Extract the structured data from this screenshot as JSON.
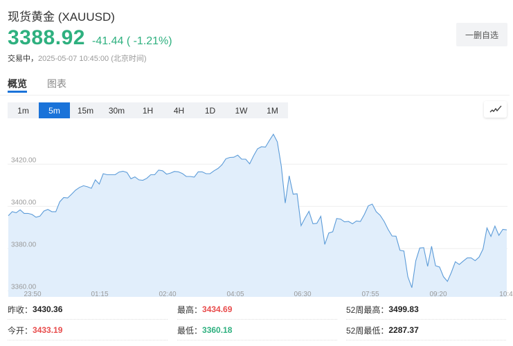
{
  "header": {
    "title": "现货黄金 (XAUUSD)",
    "price": "3388.92",
    "change": "-41.44 ( -1.21%)",
    "status_label": "交易中，",
    "timestamp": "2025-05-07 10:45:00",
    "timezone": "(北京时间)",
    "remove_watchlist_label": "一删自选"
  },
  "tabs": [
    {
      "label": "概览",
      "active": true
    },
    {
      "label": "图表",
      "active": false
    }
  ],
  "periods": [
    {
      "label": "1m"
    },
    {
      "label": "5m",
      "selected": true
    },
    {
      "label": "15m"
    },
    {
      "label": "30m"
    },
    {
      "label": "1H"
    },
    {
      "label": "4H"
    },
    {
      "label": "1D"
    },
    {
      "label": "1W"
    },
    {
      "label": "1M"
    }
  ],
  "chart_toggle_icon": "line-chart-icon",
  "colors": {
    "up": "#e84c4c",
    "down": "#2eb07f",
    "accent": "#1a73d9",
    "line": "#5b9bd8",
    "fill": "#e1eefb"
  },
  "chart_data": {
    "type": "area",
    "ylim": [
      3360,
      3435
    ],
    "y_ticks": [
      "3420.00",
      "3400.00",
      "3380.00",
      "3360.00"
    ],
    "y_tick_values": [
      3420,
      3400,
      3380,
      3360
    ],
    "x_tick_labels": [
      "23:50",
      "01:15",
      "02:40",
      "04:05",
      "06:30",
      "07:55",
      "09:20",
      "10:4"
    ],
    "grid": true,
    "values": [
      3395.6,
      3397.5,
      3397.0,
      3398.4,
      3396.7,
      3396.7,
      3396.2,
      3394.9,
      3395.4,
      3397.8,
      3398.6,
      3397.5,
      3397.5,
      3402.2,
      3404.2,
      3404.0,
      3405.8,
      3407.7,
      3409.0,
      3409.8,
      3409.3,
      3408.6,
      3412.6,
      3410.6,
      3415.5,
      3415.0,
      3415.0,
      3415.0,
      3416.3,
      3416.7,
      3416.1,
      3413.1,
      3414.0,
      3412.6,
      3412.4,
      3413.3,
      3415.0,
      3415.0,
      3417.2,
      3416.9,
      3415.3,
      3415.8,
      3416.6,
      3416.4,
      3415.6,
      3414.2,
      3414.2,
      3413.9,
      3416.4,
      3416.4,
      3415.5,
      3415.5,
      3416.9,
      3418.0,
      3419.7,
      3422.6,
      3423.2,
      3423.3,
      3424.3,
      3422.4,
      3422.4,
      3420.2,
      3424.0,
      3427.3,
      3428.3,
      3428.1,
      3431.2,
      3434.2,
      3430.6,
      3419.1,
      3401.6,
      3414.5,
      3405.8,
      3406.0,
      3390.9,
      3394.5,
      3397.7,
      3391.8,
      3392.0,
      3395.3,
      3382.0,
      3387.4,
      3388.0,
      3394.3,
      3394.0,
      3392.7,
      3392.9,
      3391.8,
      3393.1,
      3392.9,
      3396.2,
      3400.3,
      3401.1,
      3397.5,
      3395.8,
      3392.9,
      3389.1,
      3386.0,
      3385.9,
      3379.2,
      3378.9,
      3366.7,
      3361.5,
      3374.3,
      3380.3,
      3380.5,
      3371.6,
      3381.1,
      3371.9,
      3371.3,
      3366.7,
      3364.5,
      3368.8,
      3373.8,
      3372.5,
      3374.1,
      3375.6,
      3375.6,
      3374.3,
      3376.0,
      3379.8,
      3389.8,
      3385.8,
      3390.7,
      3386.3,
      3389.1,
      3388.9
    ]
  },
  "stats": [
    {
      "label": "昨收：",
      "value": "3430.36",
      "color": "#222"
    },
    {
      "label": "最高：",
      "value": "3434.69",
      "color": "#e84c4c"
    },
    {
      "label": "52周最高：",
      "value": "3499.83",
      "color": "#222"
    },
    {
      "label": "今开：",
      "value": "3433.19",
      "color": "#e84c4c"
    },
    {
      "label": "最低：",
      "value": "3360.18",
      "color": "#2eb07f"
    },
    {
      "label": "52周最低：",
      "value": "2287.37",
      "color": "#222"
    }
  ]
}
